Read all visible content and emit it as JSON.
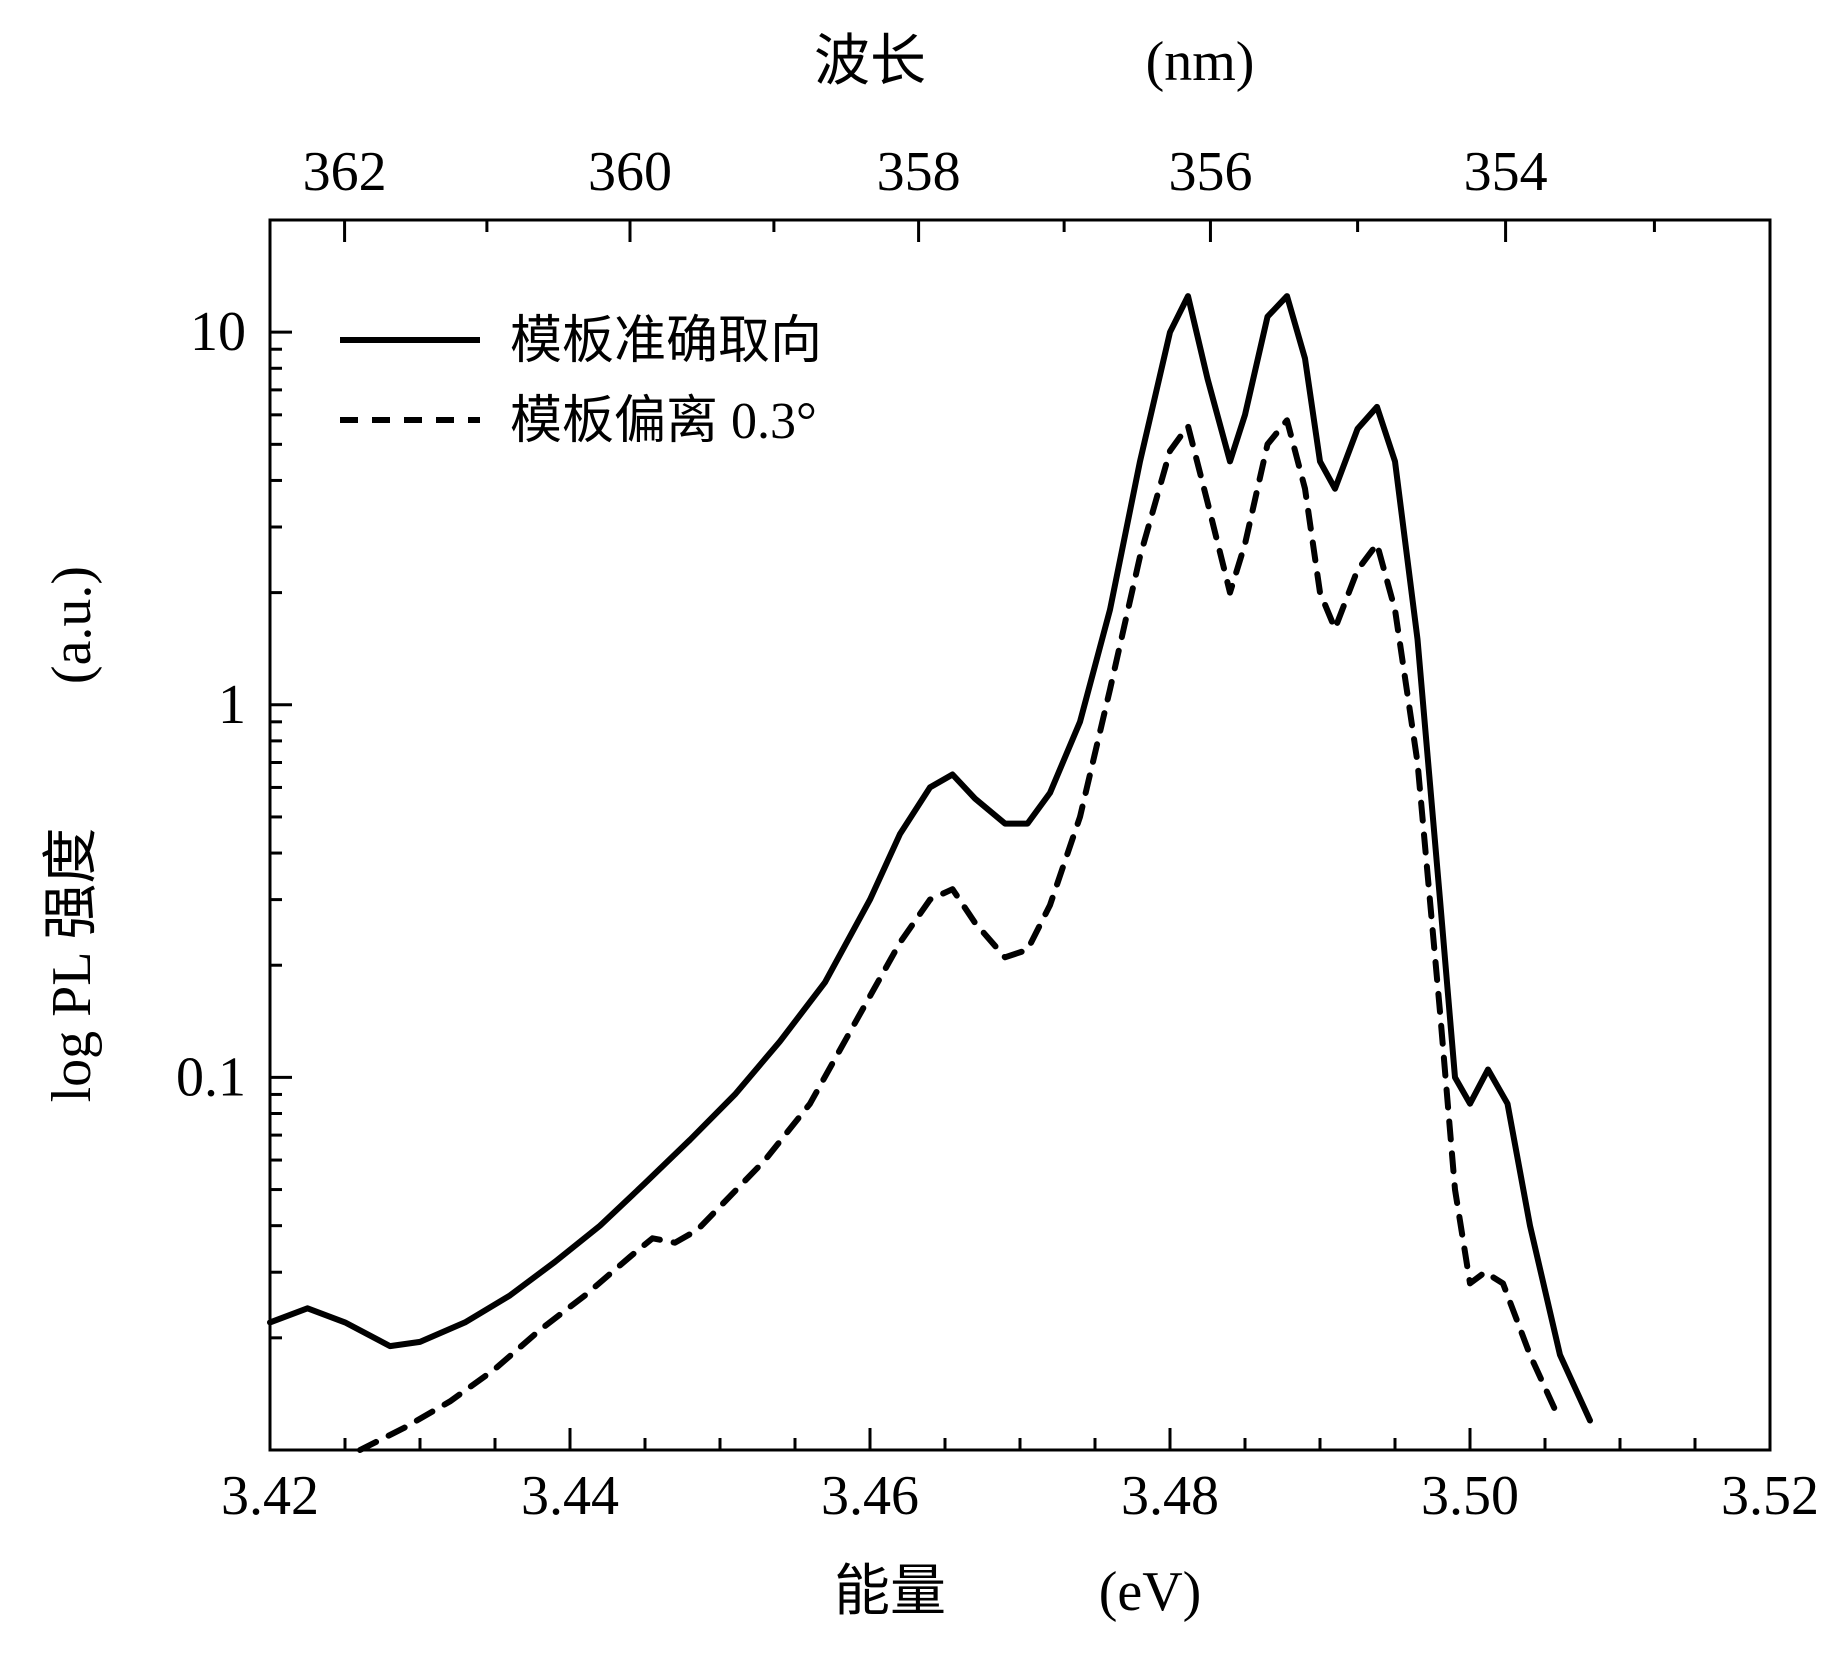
{
  "chart": {
    "type": "line",
    "background_color": "#ffffff",
    "line_color": "#000000",
    "axis_font_size": 56,
    "tick_font_size": 56,
    "legend_font_size": 52,
    "line_width_series": 6,
    "line_width_axis": 3,
    "xlim": [
      3.42,
      3.52
    ],
    "ylim": [
      0.01,
      20
    ],
    "yscale": "log",
    "xtick_values": [
      3.42,
      3.44,
      3.46,
      3.48,
      3.5,
      3.52
    ],
    "xtick_labels": [
      "3.42",
      "3.44",
      "3.46",
      "3.48",
      "3.50",
      "3.52"
    ],
    "ytick_values": [
      0.1,
      1,
      10
    ],
    "ytick_labels": [
      "0.1",
      "1",
      "10"
    ],
    "top_tick_values": [
      362,
      360,
      358,
      356,
      354
    ],
    "top_tick_labels": [
      "362",
      "360",
      "358",
      "356",
      "354"
    ],
    "xlabel_prefix": "能量",
    "xlabel_unit": "(eV)",
    "ylabel_prefix": "log PL 强度",
    "ylabel_unit": "(a.u.)",
    "top_label_prefix": "波长",
    "top_label_unit": "(nm)",
    "legend": {
      "series1_label": "模板准确取向",
      "series2_label": "模板偏离 0.3°",
      "series1_style": "solid",
      "series2_style": "dashed",
      "dash_pattern": "18 14"
    },
    "series1": {
      "name": "模板准确取向",
      "style": "solid",
      "color": "#000000",
      "data": [
        [
          3.42,
          0.022
        ],
        [
          3.4225,
          0.024
        ],
        [
          3.425,
          0.022
        ],
        [
          3.428,
          0.019
        ],
        [
          3.43,
          0.0195
        ],
        [
          3.433,
          0.022
        ],
        [
          3.436,
          0.026
        ],
        [
          3.439,
          0.032
        ],
        [
          3.442,
          0.04
        ],
        [
          3.445,
          0.052
        ],
        [
          3.448,
          0.068
        ],
        [
          3.451,
          0.09
        ],
        [
          3.454,
          0.125
        ],
        [
          3.457,
          0.18
        ],
        [
          3.46,
          0.3
        ],
        [
          3.462,
          0.45
        ],
        [
          3.464,
          0.6
        ],
        [
          3.4655,
          0.65
        ],
        [
          3.467,
          0.56
        ],
        [
          3.469,
          0.48
        ],
        [
          3.4705,
          0.48
        ],
        [
          3.472,
          0.58
        ],
        [
          3.474,
          0.9
        ],
        [
          3.476,
          1.8
        ],
        [
          3.478,
          4.5
        ],
        [
          3.48,
          10.0
        ],
        [
          3.4812,
          12.5
        ],
        [
          3.4825,
          7.5
        ],
        [
          3.484,
          4.5
        ],
        [
          3.485,
          6.0
        ],
        [
          3.4865,
          11.0
        ],
        [
          3.4878,
          12.5
        ],
        [
          3.489,
          8.5
        ],
        [
          3.49,
          4.5
        ],
        [
          3.491,
          3.8
        ],
        [
          3.4925,
          5.5
        ],
        [
          3.4938,
          6.3
        ],
        [
          3.495,
          4.5
        ],
        [
          3.4965,
          1.5
        ],
        [
          3.498,
          0.3
        ],
        [
          3.499,
          0.1
        ],
        [
          3.5,
          0.085
        ],
        [
          3.5012,
          0.105
        ],
        [
          3.5025,
          0.085
        ],
        [
          3.504,
          0.04
        ],
        [
          3.506,
          0.018
        ],
        [
          3.508,
          0.012
        ]
      ]
    },
    "series2": {
      "name": "模板偏离 0.3°",
      "style": "dashed",
      "color": "#000000",
      "data": [
        [
          3.426,
          0.01
        ],
        [
          3.429,
          0.0115
        ],
        [
          3.432,
          0.0135
        ],
        [
          3.435,
          0.0165
        ],
        [
          3.438,
          0.021
        ],
        [
          3.441,
          0.026
        ],
        [
          3.444,
          0.033
        ],
        [
          3.4455,
          0.037
        ],
        [
          3.447,
          0.036
        ],
        [
          3.4485,
          0.039
        ],
        [
          3.45,
          0.045
        ],
        [
          3.453,
          0.06
        ],
        [
          3.456,
          0.085
        ],
        [
          3.459,
          0.14
        ],
        [
          3.462,
          0.23
        ],
        [
          3.464,
          0.3
        ],
        [
          3.4655,
          0.32
        ],
        [
          3.467,
          0.26
        ],
        [
          3.469,
          0.21
        ],
        [
          3.4705,
          0.22
        ],
        [
          3.472,
          0.29
        ],
        [
          3.474,
          0.5
        ],
        [
          3.476,
          1.1
        ],
        [
          3.478,
          2.5
        ],
        [
          3.48,
          4.8
        ],
        [
          3.4812,
          5.6
        ],
        [
          3.4825,
          3.5
        ],
        [
          3.484,
          2.0
        ],
        [
          3.485,
          2.7
        ],
        [
          3.4865,
          5.0
        ],
        [
          3.4878,
          5.8
        ],
        [
          3.489,
          3.8
        ],
        [
          3.49,
          2.0
        ],
        [
          3.491,
          1.6
        ],
        [
          3.4925,
          2.3
        ],
        [
          3.4938,
          2.7
        ],
        [
          3.495,
          1.8
        ],
        [
          3.4965,
          0.7
        ],
        [
          3.498,
          0.15
        ],
        [
          3.499,
          0.05
        ],
        [
          3.5,
          0.028
        ],
        [
          3.501,
          0.03
        ],
        [
          3.5022,
          0.028
        ],
        [
          3.504,
          0.018
        ],
        [
          3.506,
          0.012
        ]
      ]
    }
  }
}
